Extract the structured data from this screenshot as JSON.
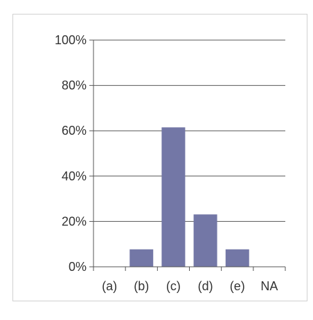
{
  "chart_data": {
    "type": "bar",
    "categories": [
      "(a)",
      "(b)",
      "(c)",
      "(d)",
      "(e)",
      "NA"
    ],
    "values": [
      0,
      7.7,
      61.5,
      23.1,
      7.7,
      0
    ],
    "ylim": [
      0,
      100
    ],
    "yticks": [
      "0%",
      "20%",
      "40%",
      "60%",
      "80%",
      "100%"
    ],
    "y_tick_values": [
      0,
      20,
      40,
      60,
      80,
      100
    ],
    "grid": true,
    "legend": "none",
    "bar_color": "#7377a6",
    "title": "",
    "xlabel": "",
    "ylabel": ""
  }
}
